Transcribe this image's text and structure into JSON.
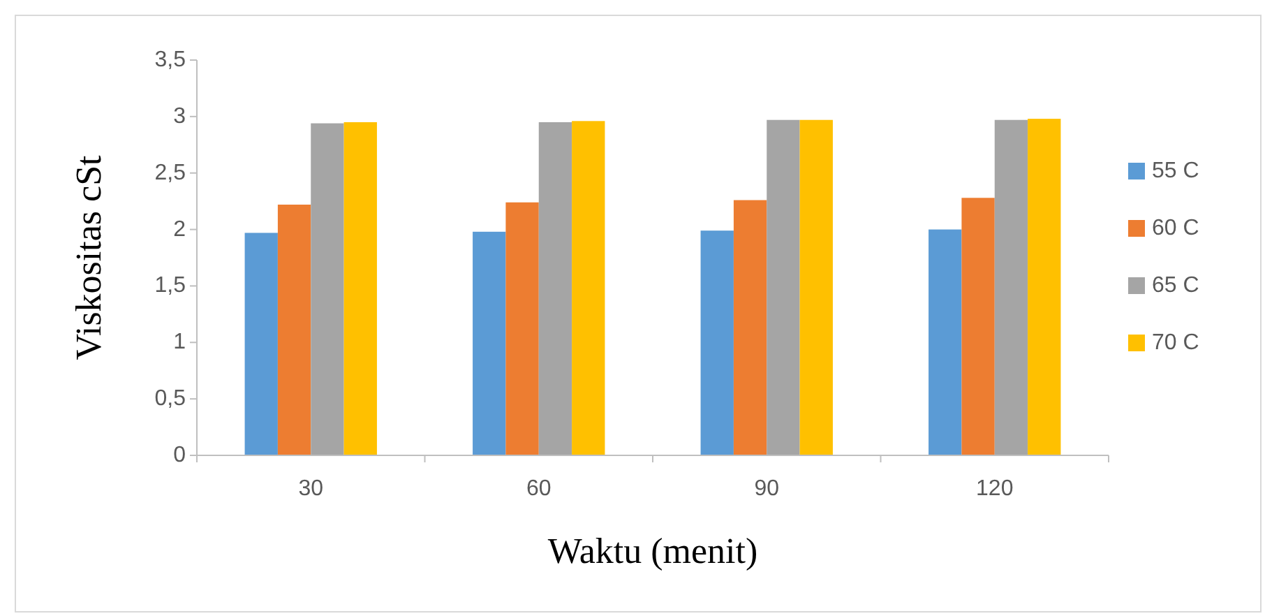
{
  "chart_data": {
    "type": "bar",
    "xlabel": "Waktu (menit)",
    "ylabel": "Viskositas cSt",
    "categories": [
      "30",
      "60",
      "90",
      "120"
    ],
    "series": [
      {
        "name": "55 C",
        "color": "#5b9bd5",
        "values": [
          1.97,
          1.98,
          1.99,
          2.0
        ]
      },
      {
        "name": "60 C",
        "color": "#ed7d31",
        "values": [
          2.22,
          2.24,
          2.26,
          2.28
        ]
      },
      {
        "name": "65 C",
        "color": "#a5a5a5",
        "values": [
          2.94,
          2.95,
          2.97,
          2.97
        ]
      },
      {
        "name": "70 C",
        "color": "#ffc000",
        "values": [
          2.95,
          2.96,
          2.97,
          2.98
        ]
      }
    ],
    "ylim": [
      0,
      3.5
    ],
    "yticks": [
      0,
      {
        "value": 0.5,
        "label": "0,5"
      },
      1,
      {
        "value": 1.5,
        "label": "1,5"
      },
      2,
      {
        "value": 2.5,
        "label": "2,5"
      },
      3,
      {
        "value": 3.5,
        "label": "3,5"
      }
    ],
    "grid": false,
    "legend": "right"
  }
}
